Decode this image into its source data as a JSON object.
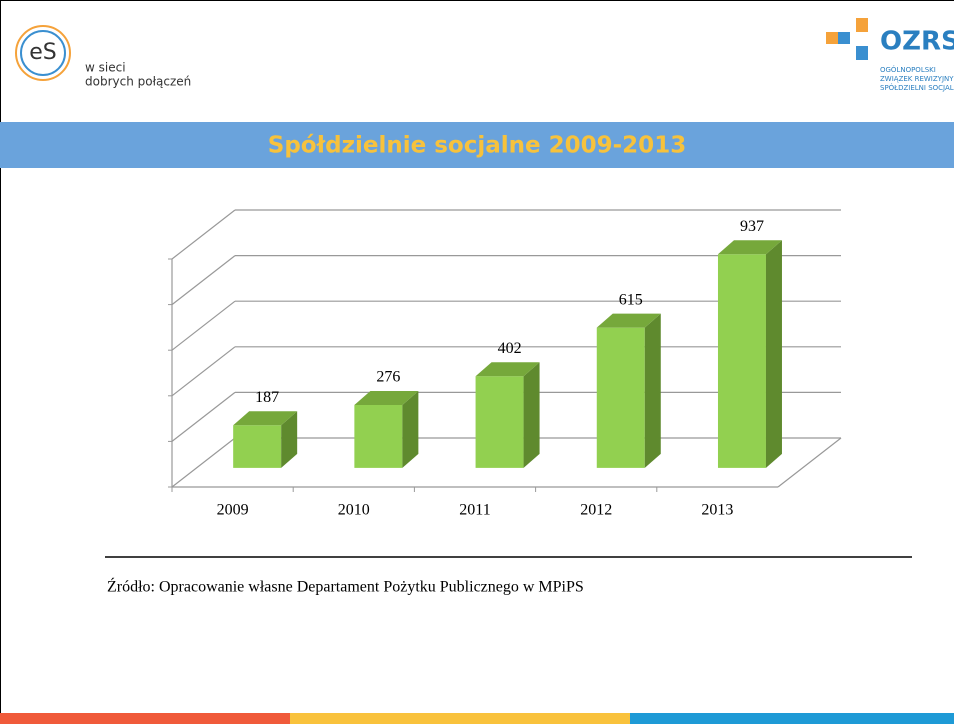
{
  "header": {
    "logo_left": "eS",
    "tagline_1": "w sieci",
    "tagline_2": "dobrych połączeń",
    "logo_right": "OZRSS",
    "org_1": "OGÓLNOPOLSKI",
    "org_2": "ZWIĄZEK REWIZYJNY",
    "org_3": "SPÓŁDZIELNI SOCJALNYCH"
  },
  "chart_data": {
    "type": "bar",
    "title": "Spółdzielnie socjalne 2009-2013",
    "categories": [
      "2009",
      "2010",
      "2011",
      "2012",
      "2013"
    ],
    "values": [
      187,
      276,
      402,
      615,
      937
    ],
    "color": "#92d050",
    "ylim": [
      0,
      1000
    ],
    "yticks": [
      0,
      200,
      400,
      600,
      800,
      1000
    ],
    "grid": true,
    "source": "Źródło: Opracowanie własne Departament Pożytku Publicznego w MPiPS"
  }
}
